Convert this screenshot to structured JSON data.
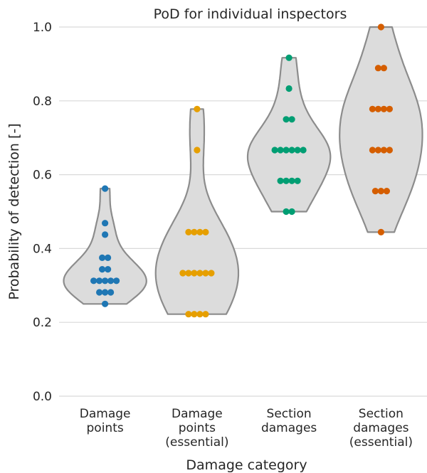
{
  "chart_data": {
    "type": "violin",
    "title": "PoD for individual inspectors",
    "xlabel": "Damage category",
    "ylabel": "Probability of detection [-]",
    "ylim": [
      0.0,
      1.0
    ],
    "yticks": [
      "0.0",
      "0.2",
      "0.4",
      "0.6",
      "0.8",
      "1.0"
    ],
    "grid": "horizontal",
    "categories": [
      {
        "label": [
          "Damage",
          "points"
        ],
        "color": "#1f77b4",
        "points": [
          0.5625,
          0.4688,
          0.4375,
          0.375,
          0.375,
          0.3438,
          0.3438,
          0.3125,
          0.3125,
          0.3125,
          0.3125,
          0.3125,
          0.2813,
          0.2813,
          0.2813,
          0.25
        ]
      },
      {
        "label": [
          "Damage",
          "points",
          "(essential)"
        ],
        "color": "#e69f00",
        "points": [
          0.7778,
          0.6667,
          0.4444,
          0.4444,
          0.4444,
          0.4444,
          0.3333,
          0.3333,
          0.3333,
          0.3333,
          0.3333,
          0.3333,
          0.2222,
          0.2222,
          0.2222,
          0.2222
        ]
      },
      {
        "label": [
          "Section",
          "damages"
        ],
        "color": "#009e73",
        "points": [
          0.9167,
          0.8333,
          0.75,
          0.75,
          0.6667,
          0.6667,
          0.6667,
          0.6667,
          0.6667,
          0.6667,
          0.5833,
          0.5833,
          0.5833,
          0.5833,
          0.5,
          0.5
        ]
      },
      {
        "label": [
          "Section",
          "damages",
          "(essential)"
        ],
        "color": "#d55e00",
        "points": [
          1.0,
          0.8889,
          0.8889,
          0.7778,
          0.7778,
          0.7778,
          0.7778,
          0.6667,
          0.6667,
          0.6667,
          0.6667,
          0.5556,
          0.5556,
          0.5556,
          0.4444
        ]
      }
    ]
  }
}
